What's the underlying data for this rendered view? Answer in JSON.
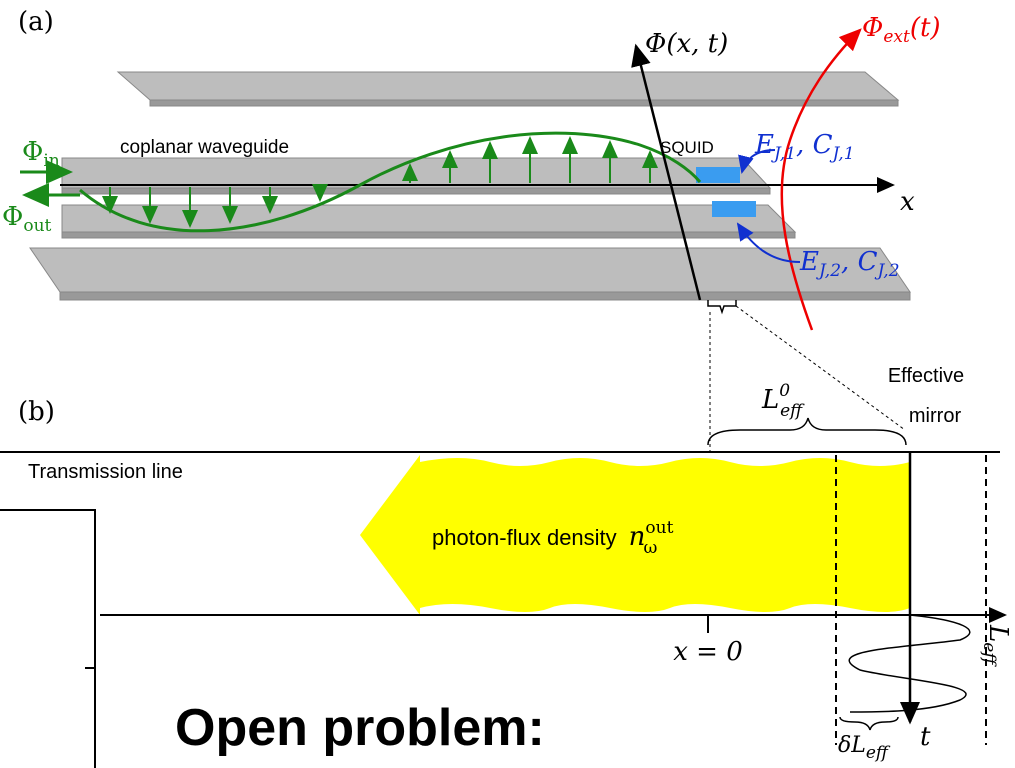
{
  "panel_a": {
    "label": "(a)",
    "phi_axis": {
      "main": "Φ",
      "rest": "(x, t)"
    },
    "phi_ext": {
      "main": "Φ",
      "sub": "ext",
      "rest": "(t)"
    },
    "phi_in": {
      "main": "Φ",
      "sub": "in"
    },
    "phi_out": {
      "main": "Φ",
      "sub": "out"
    },
    "waveguide": "coplanar waveguide",
    "squid": "SQUID",
    "junction_1": {
      "e": "E",
      "e_sub": "J,1",
      "sep": ", ",
      "c": "C",
      "c_sub": "J,1"
    },
    "junction_2": {
      "e": "E",
      "e_sub": "J,2",
      "sep": ", ",
      "c": "C",
      "c_sub": "J,2"
    },
    "x_axis": "x"
  },
  "panel_b": {
    "label": "(b)",
    "l_eff_0": {
      "main": "L",
      "sup": "0",
      "sub": "eff"
    },
    "mirror": [
      "Effective",
      "mirror"
    ],
    "transmission_line": "Transmission line",
    "photon_flux": {
      "text": "photon-flux density",
      "symbol": "n",
      "sup": "out",
      "sub": "ω"
    },
    "origin": "x = 0",
    "l_eff_axis": {
      "main": "L",
      "sub": "eff"
    },
    "delta_l_eff": {
      "main": "δL",
      "sub": "eff"
    },
    "t_axis": "t"
  },
  "overlay": "Open problem:"
}
